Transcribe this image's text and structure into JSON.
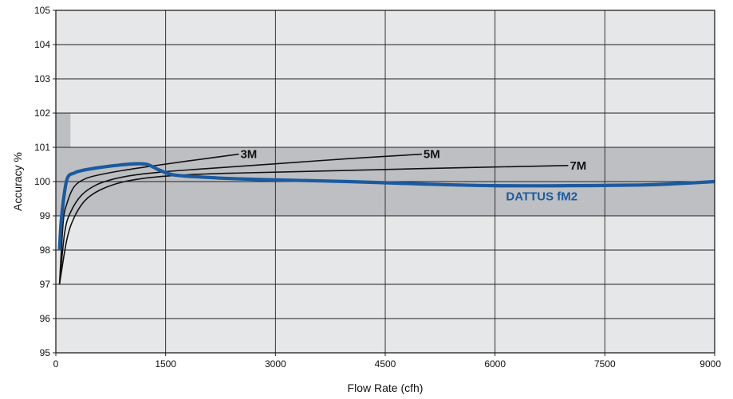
{
  "chart_data": {
    "type": "line",
    "title": "",
    "xlabel": "Flow Rate (cfh)",
    "ylabel": "Accuracy %",
    "xlim": [
      0,
      9000
    ],
    "ylim": [
      95,
      105
    ],
    "xticks": [
      "0",
      "1500",
      "3000",
      "4500",
      "6000",
      "7500",
      "9000"
    ],
    "yticks": [
      "95",
      "96",
      "97",
      "98",
      "99",
      "100",
      "101",
      "102",
      "103",
      "104",
      "105"
    ],
    "grid": true,
    "bands": [
      {
        "x": [
          0,
          9000
        ],
        "y": [
          99,
          101
        ],
        "color": "#bdbfc2"
      },
      {
        "x": [
          0,
          200
        ],
        "y": [
          101,
          102
        ],
        "color": "#bdbfc2"
      }
    ],
    "background_color": "#e6e7e8",
    "series": [
      {
        "name": "DATTUS fM2",
        "color": "#1b5aa0",
        "x": [
          50,
          80,
          150,
          250,
          350,
          500,
          700,
          900,
          1100,
          1250,
          1400,
          1600,
          2000,
          2500,
          3000,
          4000,
          5000,
          6000,
          7000,
          8000,
          8500,
          9000
        ],
        "y": [
          98.0,
          99.0,
          100.05,
          100.25,
          100.32,
          100.38,
          100.44,
          100.49,
          100.52,
          100.5,
          100.35,
          100.2,
          100.13,
          100.08,
          100.05,
          100.0,
          99.93,
          99.88,
          99.88,
          99.9,
          99.94,
          100.0
        ]
      },
      {
        "name": "3M",
        "color": "#111111",
        "x": [
          50,
          100,
          150,
          250,
          400,
          600,
          900,
          1300,
          1800,
          2500
        ],
        "y": [
          97.0,
          98.8,
          99.35,
          99.85,
          100.08,
          100.2,
          100.32,
          100.45,
          100.6,
          100.8
        ]
      },
      {
        "name": "5M",
        "color": "#111111",
        "x": [
          50,
          120,
          200,
          350,
          550,
          800,
          1100,
          1500,
          2000,
          3000,
          4000,
          5000
        ],
        "y": [
          97.0,
          98.5,
          99.1,
          99.6,
          99.9,
          100.08,
          100.2,
          100.29,
          100.37,
          100.52,
          100.67,
          100.8
        ]
      },
      {
        "name": "7M",
        "color": "#111111",
        "x": [
          50,
          150,
          250,
          400,
          600,
          900,
          1300,
          1800,
          2500,
          3500,
          5000,
          7000
        ],
        "y": [
          97.0,
          98.3,
          98.95,
          99.45,
          99.75,
          99.98,
          100.12,
          100.2,
          100.25,
          100.3,
          100.38,
          100.47
        ]
      }
    ],
    "annotations": [
      {
        "text": "3M",
        "x": 2500,
        "y": 100.8,
        "color": "#111111"
      },
      {
        "text": "5M",
        "x": 5000,
        "y": 100.8,
        "color": "#111111"
      },
      {
        "text": "7M",
        "x": 7000,
        "y": 100.47,
        "color": "#111111"
      },
      {
        "text": "DATTUS fM2",
        "x": 6150,
        "y": 99.62,
        "color": "#1b5aa0"
      }
    ]
  }
}
